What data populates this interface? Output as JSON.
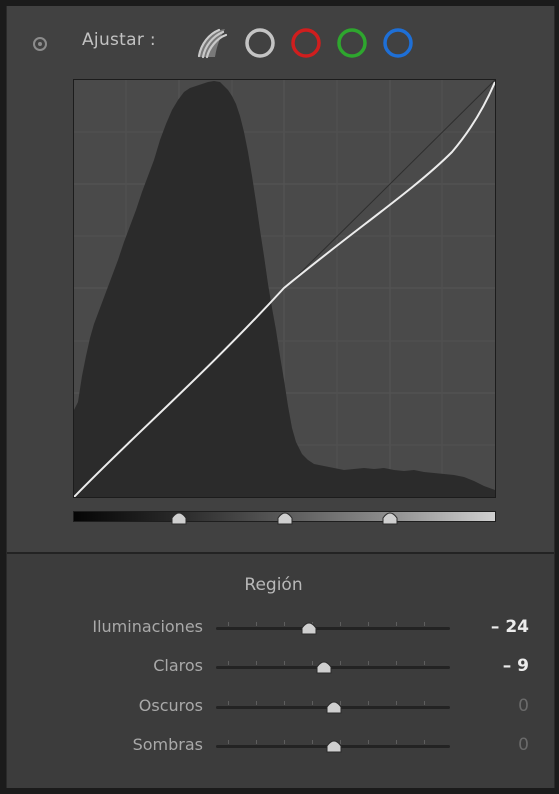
{
  "header": {
    "adjust_label": "Ajustar :",
    "channels": [
      {
        "name": "rgb-composite",
        "color": "#c8c8c8"
      },
      {
        "name": "luminance",
        "color": "#c0c0c0"
      },
      {
        "name": "red",
        "color": "#d01e1e"
      },
      {
        "name": "green",
        "color": "#2ea62e"
      },
      {
        "name": "blue",
        "color": "#1e6fd6"
      }
    ]
  },
  "curve": {
    "split_points_percent": [
      25,
      50,
      75
    ]
  },
  "region": {
    "title": "Región",
    "sliders": [
      {
        "label": "Iluminaciones",
        "value": "– 24",
        "level": -24
      },
      {
        "label": "Claros",
        "value": "– 9",
        "level": -9
      },
      {
        "label": "Oscuros",
        "value": "0",
        "level": 0
      },
      {
        "label": "Sombras",
        "value": "0",
        "level": 0
      }
    ]
  },
  "colors": {
    "panel": "#414141",
    "graph_bg": "#4a4a4a",
    "histogram": "#2b2b2b",
    "curve": "#ececec"
  }
}
